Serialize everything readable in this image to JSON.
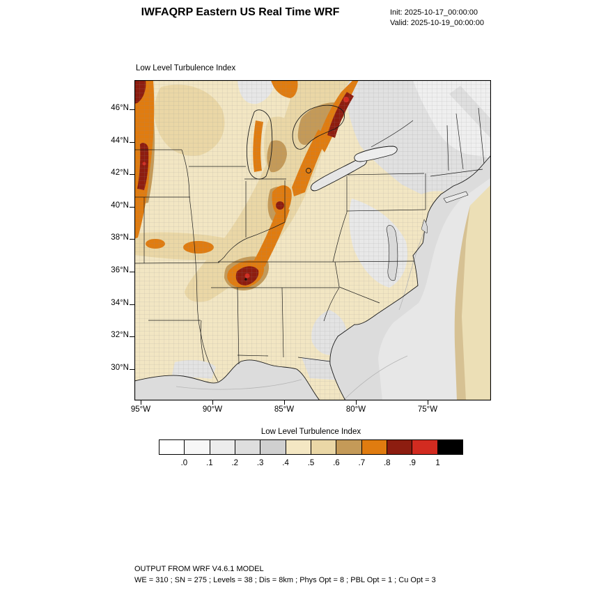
{
  "header": {
    "title": "IWFAQRP Eastern US Real Time WRF",
    "init": "Init: 2025-10-17_00:00:00",
    "valid": "Valid: 2025-10-19_00:00:00"
  },
  "map": {
    "title": "Low Level Turbulence Index",
    "lat_ticks": [
      "46°N",
      "44°N",
      "42°N",
      "40°N",
      "38°N",
      "36°N",
      "34°N",
      "32°N",
      "30°N"
    ],
    "lon_ticks": [
      "95°W",
      "90°W",
      "85°W",
      "80°W",
      "75°W"
    ]
  },
  "colorbar": {
    "title": "Low Level Turbulence Index",
    "labels": [
      ".0",
      ".1",
      ".2",
      ".3",
      ".4",
      ".5",
      ".6",
      ".7",
      ".8",
      ".9",
      "1"
    ],
    "colors": [
      "#ffffff",
      "#f7f7f7",
      "#ececec",
      "#dedede",
      "#d0d0d0",
      "#f4e7c3",
      "#ead7a6",
      "#c49a58",
      "#e07c10",
      "#8d1d10",
      "#d22b20",
      "#000000"
    ]
  },
  "footer": {
    "line1": "OUTPUT FROM WRF V4.6.1 MODEL",
    "line2": "WE = 310 ; SN = 275 ; Levels = 38 ; Dis = 8km ; Phys Opt = 8 ; PBL Opt = 1 ; Cu Opt = 3"
  },
  "chart_data": {
    "type": "heatmap",
    "title": "Low Level Turbulence Index",
    "region": "Eastern US (WRF model domain)",
    "model": {
      "name": "WRF V4.6.1",
      "init": "2025-10-17_00:00:00",
      "valid": "2025-10-19_00:00:00",
      "config": "WE = 310 ; SN = 275 ; Levels = 38 ; Dis = 8km ; Phys Opt = 8 ; PBL Opt = 1 ; Cu Opt = 3"
    },
    "x_axis": {
      "label": "longitude",
      "tick_labels": [
        "95°W",
        "90°W",
        "85°W",
        "80°W",
        "75°W"
      ],
      "approx_range_deg_west": [
        99.5,
        70.4
      ]
    },
    "y_axis": {
      "label": "latitude",
      "tick_labels": [
        "46°N",
        "44°N",
        "42°N",
        "40°N",
        "38°N",
        "36°N",
        "34°N",
        "32°N",
        "30°N"
      ],
      "approx_range_deg_north": [
        28.1,
        47.8
      ]
    },
    "colorbar_levels": [
      0.0,
      0.1,
      0.2,
      0.3,
      0.4,
      0.5,
      0.6,
      0.7,
      0.8,
      0.9,
      1.0
    ],
    "colorbar_colors": [
      "#ffffff",
      "#f7f7f7",
      "#ececec",
      "#dedede",
      "#d0d0d0",
      "#f4e7c3",
      "#ead7a6",
      "#c49a58",
      "#e07c10",
      "#8d1d10",
      "#d22b20",
      "#000000"
    ],
    "features": [
      {
        "range": "0.7-1.0",
        "description": "Elongated SW-NE maxima band from middle Tennessee/Kentucky through Indiana-Ohio into Michigan, Lake Huron / Georgian Bay and southern Ontario; narrow north-south band along the Minnesota-Iowa western edge of the domain; dark-red cores (>0.8) over central Tennessee, Indiana and Georgian Bay with small spots >0.9"
      },
      {
        "range": "0.5-0.7",
        "description": "Broad tan areas over Wisconsin/upper Midwest, the Missouri-Kentucky corridor near 37°N, and lower Michigan surrounding the orange cores"
      },
      {
        "range": "0.4-0.5",
        "description": "Pale cream background over most land of the Midwest and Southeast"
      },
      {
        "range": "0.0-0.4",
        "description": "Gray/white minima over New England, the Mid-Atlantic piedmont, parts of Georgia/South Carolina/Florida panhandle, the Atlantic Ocean and Gulf of Mexico"
      }
    ],
    "grid": "county boundaries drawn over land; state borders and coastline in black"
  }
}
